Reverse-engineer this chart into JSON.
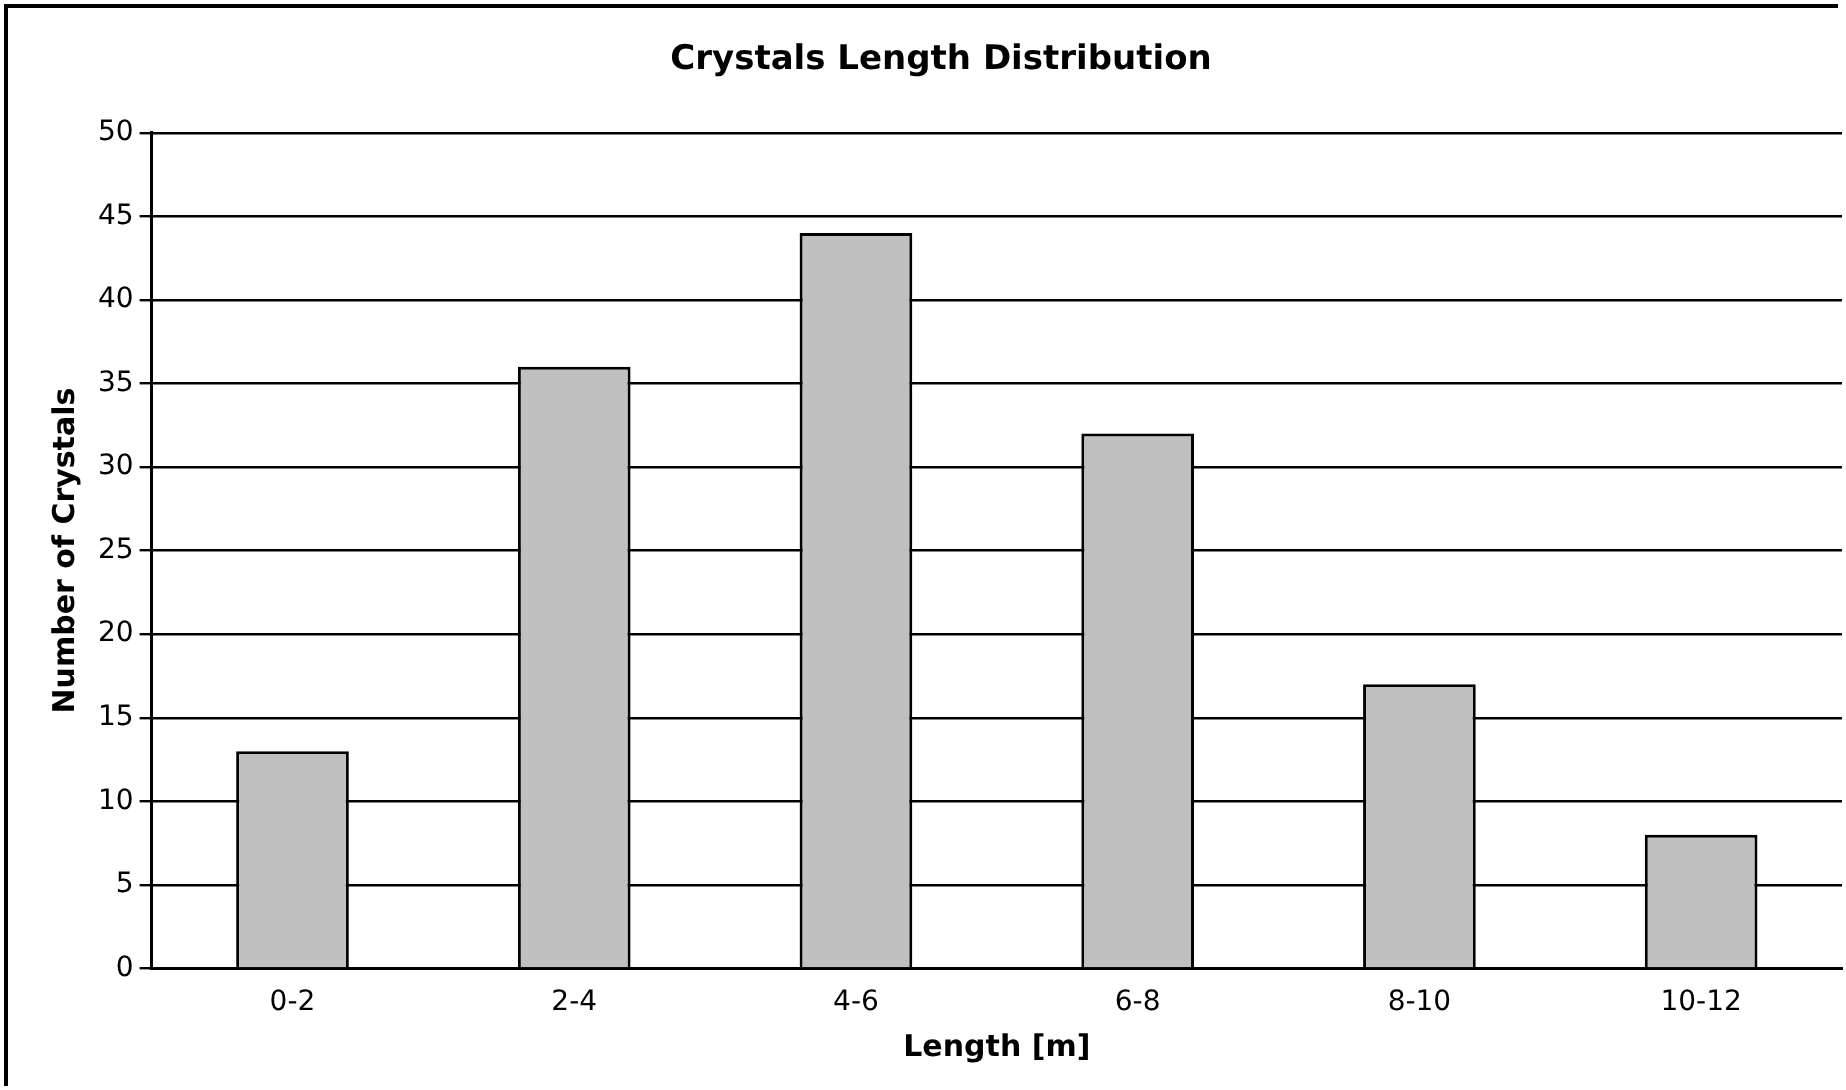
{
  "chart_data": {
    "type": "bar",
    "title": "Crystals Length Distribution",
    "xlabel": "Length [m]",
    "ylabel": "Number of Crystals",
    "categories": [
      "0-2",
      "2-4",
      "4-6",
      "6-8",
      "8-10",
      "10-12"
    ],
    "values": [
      13,
      36,
      44,
      32,
      17,
      8
    ],
    "color": "#c0c0c0",
    "ylim": [
      0,
      50
    ],
    "yticks": [
      0,
      5,
      10,
      15,
      20,
      25,
      30,
      35,
      40,
      45,
      50
    ],
    "grid": "y",
    "legend": false
  }
}
